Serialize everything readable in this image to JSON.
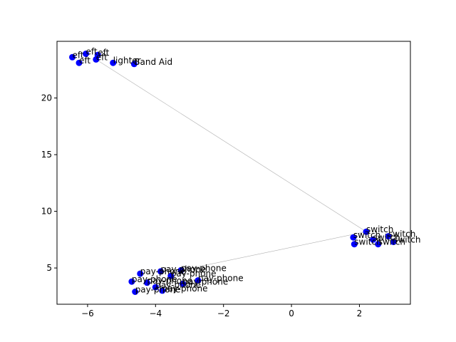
{
  "chart_data": {
    "type": "scatter",
    "title": "",
    "xlabel": "",
    "ylabel": "",
    "xlim": [
      -6.9,
      3.5
    ],
    "ylim": [
      1.8,
      25.0
    ],
    "xticks": [
      -6,
      -4,
      -2,
      0,
      2
    ],
    "xtick_labels": [
      "−6",
      "−4",
      "−2",
      "0",
      "2"
    ],
    "yticks": [
      5,
      10,
      15,
      20
    ],
    "ytick_labels": [
      "5",
      "10",
      "15",
      "20"
    ],
    "grid": false,
    "legend": "none",
    "marker_color": "#0000ff",
    "line_color": "#b0b0b0",
    "points": [
      {
        "x": -6.45,
        "y": 23.6,
        "label": "eft"
      },
      {
        "x": -6.25,
        "y": 23.1,
        "label": "eft"
      },
      {
        "x": -6.05,
        "y": 23.9,
        "label": "eft"
      },
      {
        "x": -5.75,
        "y": 23.4,
        "label": "eft"
      },
      {
        "x": -5.7,
        "y": 23.8,
        "label": "eft"
      },
      {
        "x": -5.25,
        "y": 23.1,
        "label": "lighter"
      },
      {
        "x": -4.63,
        "y": 23.0,
        "label": "Band Aid"
      },
      {
        "x": 2.2,
        "y": 8.2,
        "label": "switch"
      },
      {
        "x": 2.85,
        "y": 7.8,
        "label": "switch"
      },
      {
        "x": 1.82,
        "y": 7.7,
        "label": "switch"
      },
      {
        "x": 2.4,
        "y": 7.5,
        "label": "switch"
      },
      {
        "x": 3.0,
        "y": 7.3,
        "label": "switch"
      },
      {
        "x": 2.55,
        "y": 7.1,
        "label": "switch"
      },
      {
        "x": 1.85,
        "y": 7.1,
        "label": "switch"
      },
      {
        "x": -3.25,
        "y": 4.8,
        "label": "pay-phone"
      },
      {
        "x": -3.85,
        "y": 4.7,
        "label": "pay-phone"
      },
      {
        "x": -4.45,
        "y": 4.5,
        "label": "pay-phone"
      },
      {
        "x": -3.55,
        "y": 4.3,
        "label": "pay-phone"
      },
      {
        "x": -2.75,
        "y": 3.9,
        "label": "pay-phone"
      },
      {
        "x": -4.7,
        "y": 3.8,
        "label": "pay-phone"
      },
      {
        "x": -4.25,
        "y": 3.7,
        "label": "pay-phone"
      },
      {
        "x": -3.2,
        "y": 3.6,
        "label": "pay-phone"
      },
      {
        "x": -4.0,
        "y": 3.3,
        "label": "pay-phone"
      },
      {
        "x": -3.8,
        "y": 3.0,
        "label": "pay-phone"
      },
      {
        "x": -4.6,
        "y": 2.9,
        "label": "pay-phone"
      }
    ],
    "connector": [
      {
        "x": -5.75,
        "y": 23.4
      },
      {
        "x": 2.2,
        "y": 8.2
      },
      {
        "x": -3.25,
        "y": 4.8
      }
    ]
  }
}
